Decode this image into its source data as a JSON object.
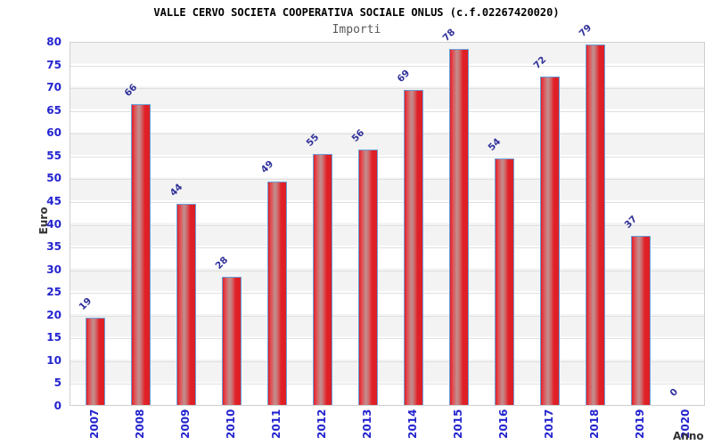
{
  "chart_data": {
    "type": "bar",
    "title": "VALLE CERVO SOCIETA COOPERATIVA SOCIALE ONLUS (c.f.02267420020)",
    "subtitle": "Importi",
    "xlabel": "Anno",
    "ylabel": "Euro",
    "categories": [
      "2007",
      "2008",
      "2009",
      "2010",
      "2011",
      "2012",
      "2013",
      "2014",
      "2015",
      "2016",
      "2017",
      "2018",
      "2019",
      "2020"
    ],
    "values": [
      19,
      66,
      44,
      28,
      49,
      55,
      56,
      69,
      78,
      54,
      72,
      79,
      37,
      0
    ],
    "ylim": [
      0,
      80
    ],
    "ytick_step": 5,
    "grid": "horizontal-stripes",
    "legend": "none",
    "colors": {
      "bar_fill_main": "#dc2026",
      "bar_fill_highlight": "#c18f8f",
      "bar_border": "#6aa0da",
      "value_label": "#32329b",
      "axis_tick_label": "#2424cf",
      "axis_title": "#333333",
      "title": "#000000",
      "subtitle": "#595959",
      "stripe": "#f3f3f3",
      "gridline": "#e0e0e0",
      "plot_border": "#cfcfcf",
      "background": "#ffffff"
    }
  }
}
